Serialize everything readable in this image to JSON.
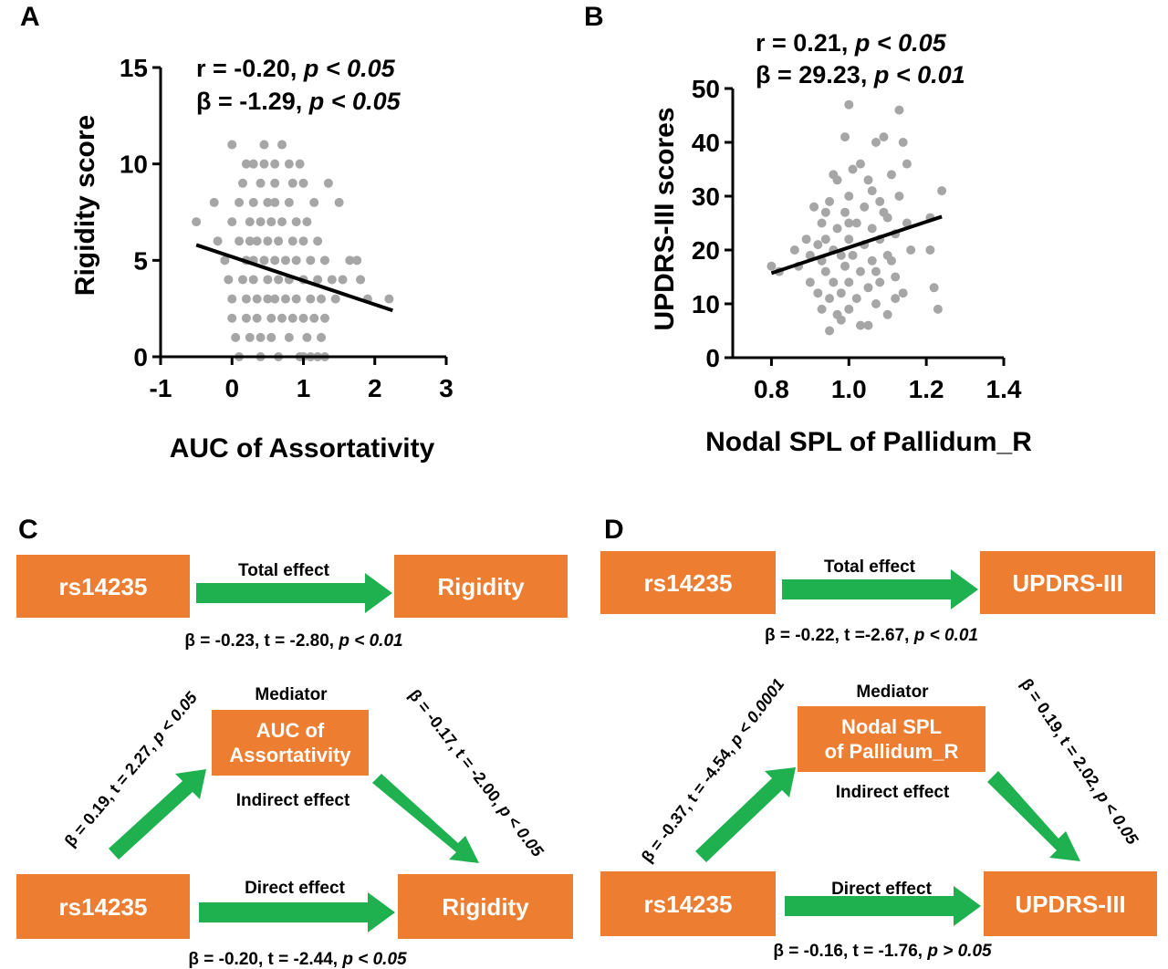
{
  "panel_letters": [
    "A",
    "B",
    "C",
    "D"
  ],
  "chart_data": [
    {
      "type": "scatter",
      "panel": "A",
      "xlabel": "AUC of Assortativity",
      "ylabel": "Rigidity score",
      "xlim": [
        -1,
        3
      ],
      "ylim": [
        0,
        15
      ],
      "xticks": [
        -1,
        0,
        1,
        2,
        3
      ],
      "yticks": [
        0,
        5,
        10,
        15
      ],
      "stats": {
        "r_prefix": "r = -0.20, ",
        "r_p": "p < 0.05",
        "b_prefix": "β = -1.29, ",
        "b_p": "p < 0.05"
      },
      "fit_line": {
        "x": [
          -0.5,
          2.25
        ],
        "y": [
          5.8,
          2.4
        ]
      },
      "points": [
        [
          -0.5,
          7
        ],
        [
          -0.25,
          8
        ],
        [
          -0.2,
          6
        ],
        [
          -0.1,
          5
        ],
        [
          -0.05,
          4
        ],
        [
          0.0,
          11
        ],
        [
          0.0,
          7
        ],
        [
          0.0,
          3
        ],
        [
          0.0,
          2
        ],
        [
          0.05,
          1
        ],
        [
          0.1,
          0
        ],
        [
          0.1,
          8
        ],
        [
          0.1,
          6
        ],
        [
          0.15,
          4
        ],
        [
          0.2,
          2
        ],
        [
          0.2,
          5
        ],
        [
          0.2,
          3
        ],
        [
          0.2,
          10
        ],
        [
          0.25,
          7
        ],
        [
          0.25,
          6
        ],
        [
          0.25,
          1
        ],
        [
          0.3,
          10
        ],
        [
          0.3,
          8
        ],
        [
          0.3,
          5
        ],
        [
          0.3,
          4
        ],
        [
          0.35,
          3
        ],
        [
          0.35,
          2
        ],
        [
          0.35,
          6
        ],
        [
          0.4,
          9
        ],
        [
          0.4,
          7
        ],
        [
          0.4,
          1
        ],
        [
          0.4,
          0
        ],
        [
          0.45,
          11
        ],
        [
          0.45,
          10
        ],
        [
          0.45,
          5
        ],
        [
          0.5,
          8
        ],
        [
          0.5,
          6
        ],
        [
          0.5,
          4
        ],
        [
          0.5,
          3
        ],
        [
          0.55,
          2
        ],
        [
          0.55,
          7
        ],
        [
          0.55,
          1
        ],
        [
          0.6,
          9
        ],
        [
          0.6,
          5
        ],
        [
          0.6,
          3
        ],
        [
          0.6,
          8
        ],
        [
          0.65,
          6
        ],
        [
          0.65,
          4
        ],
        [
          0.65,
          0
        ],
        [
          0.7,
          11
        ],
        [
          0.7,
          7
        ],
        [
          0.7,
          2
        ],
        [
          0.75,
          5
        ],
        [
          0.75,
          3
        ],
        [
          0.8,
          8
        ],
        [
          0.8,
          10
        ],
        [
          0.8,
          1
        ],
        [
          0.8,
          4
        ],
        [
          0.85,
          6
        ],
        [
          0.85,
          2
        ],
        [
          0.9,
          7
        ],
        [
          0.9,
          5
        ],
        [
          0.9,
          3
        ],
        [
          0.95,
          10
        ],
        [
          0.95,
          0
        ],
        [
          1.0,
          6
        ],
        [
          1.0,
          4
        ],
        [
          1.0,
          2
        ],
        [
          1.0,
          9
        ],
        [
          1.05,
          7
        ],
        [
          1.05,
          1
        ],
        [
          1.1,
          5
        ],
        [
          1.1,
          3
        ],
        [
          1.1,
          0
        ],
        [
          1.15,
          8
        ],
        [
          1.15,
          2
        ],
        [
          1.2,
          4
        ],
        [
          1.2,
          6
        ],
        [
          1.25,
          3
        ],
        [
          1.25,
          1
        ],
        [
          1.3,
          5
        ],
        [
          1.3,
          2
        ],
        [
          1.3,
          0
        ],
        [
          1.35,
          9
        ],
        [
          1.4,
          4
        ],
        [
          1.45,
          3
        ],
        [
          1.5,
          8
        ],
        [
          1.55,
          4
        ],
        [
          1.65,
          5
        ],
        [
          1.75,
          5
        ],
        [
          1.8,
          4
        ],
        [
          1.9,
          3
        ],
        [
          2.2,
          3
        ],
        [
          0.15,
          9
        ],
        [
          0.6,
          10
        ],
        [
          0.85,
          9
        ],
        [
          1.0,
          0
        ],
        [
          1.2,
          0
        ]
      ]
    },
    {
      "type": "scatter",
      "panel": "B",
      "xlabel": "Nodal SPL of Pallidum_R",
      "ylabel": "UPDRS-III scores",
      "xlim": [
        0.7,
        1.4
      ],
      "ylim": [
        0,
        50
      ],
      "xticks": [
        "0.8",
        "1.0",
        "1.2",
        "1.4"
      ],
      "yticks": [
        0,
        10,
        20,
        30,
        40,
        50
      ],
      "stats": {
        "r_prefix": "r = 0.21, ",
        "r_p": "p < 0.05",
        "b_prefix": "β = 29.23, ",
        "b_p": "p < 0.01"
      },
      "fit_line": {
        "x": [
          0.8,
          1.24
        ],
        "y": [
          15.7,
          26.2
        ]
      },
      "points": [
        [
          0.8,
          17
        ],
        [
          0.82,
          16
        ],
        [
          0.86,
          20
        ],
        [
          0.87,
          17
        ],
        [
          0.89,
          22
        ],
        [
          0.9,
          19
        ],
        [
          0.9,
          14
        ],
        [
          0.91,
          28
        ],
        [
          0.92,
          21
        ],
        [
          0.92,
          12
        ],
        [
          0.93,
          25
        ],
        [
          0.93,
          18
        ],
        [
          0.93,
          9
        ],
        [
          0.94,
          22
        ],
        [
          0.94,
          16
        ],
        [
          0.95,
          11
        ],
        [
          0.95,
          5
        ],
        [
          0.95,
          29
        ],
        [
          0.96,
          20
        ],
        [
          0.96,
          14
        ],
        [
          0.97,
          33
        ],
        [
          0.97,
          24
        ],
        [
          0.97,
          8
        ],
        [
          0.98,
          19
        ],
        [
          0.98,
          12
        ],
        [
          0.99,
          27
        ],
        [
          0.99,
          17
        ],
        [
          1.0,
          47
        ],
        [
          1.0,
          22
        ],
        [
          1.0,
          30
        ],
        [
          1.0,
          14
        ],
        [
          1.0,
          9
        ],
        [
          1.01,
          35
        ],
        [
          1.01,
          19
        ],
        [
          1.02,
          25
        ],
        [
          1.02,
          11
        ],
        [
          1.03,
          16
        ],
        [
          1.03,
          36
        ],
        [
          1.04,
          21
        ],
        [
          1.04,
          28
        ],
        [
          1.05,
          13
        ],
        [
          1.05,
          6
        ],
        [
          1.05,
          33
        ],
        [
          1.06,
          24
        ],
        [
          1.06,
          18
        ],
        [
          1.07,
          40
        ],
        [
          1.07,
          10
        ],
        [
          1.08,
          29
        ],
        [
          1.08,
          22
        ],
        [
          1.08,
          14
        ],
        [
          1.09,
          41
        ],
        [
          1.1,
          26
        ],
        [
          1.1,
          19
        ],
        [
          1.1,
          8
        ],
        [
          1.11,
          34
        ],
        [
          1.12,
          23
        ],
        [
          1.12,
          15
        ],
        [
          1.13,
          46
        ],
        [
          1.13,
          30
        ],
        [
          1.14,
          40
        ],
        [
          1.14,
          12
        ],
        [
          1.15,
          25
        ],
        [
          1.16,
          20
        ],
        [
          1.21,
          26
        ],
        [
          1.21,
          20
        ],
        [
          1.22,
          13
        ],
        [
          1.23,
          9
        ],
        [
          1.24,
          31
        ],
        [
          1.15,
          36
        ],
        [
          1.03,
          6
        ],
        [
          0.94,
          27
        ],
        [
          0.99,
          41
        ],
        [
          1.06,
          31
        ],
        [
          1.11,
          18
        ],
        [
          0.98,
          7
        ],
        [
          1.0,
          25
        ],
        [
          1.07,
          16
        ],
        [
          0.96,
          34
        ],
        [
          1.09,
          27
        ],
        [
          1.12,
          11
        ]
      ]
    }
  ],
  "diagram_c": {
    "panel": "C",
    "top": {
      "x_box": "rs14235",
      "y_box": "Rigidity",
      "effect_label": "Total effect",
      "stat_prefix": "β = -0.23, t = -2.80, ",
      "stat_p": "p < 0.01"
    },
    "mediator_title": "Mediator",
    "mediator_box": [
      "AUC of",
      "Assortativity"
    ],
    "indirect_label": "Indirect effect",
    "a_path": {
      "prefix": "β = 0.19, t = 2.27, ",
      "p": "p < 0.05"
    },
    "b_path": {
      "prefix": "β = -0.17, t = -2.00, ",
      "p": "p < 0.05"
    },
    "bottom": {
      "x_box": "rs14235",
      "y_box": "Rigidity",
      "effect_label": "Direct effect",
      "stat_prefix": "β = -0.20, t = -2.44, ",
      "stat_p": "p < 0.05"
    }
  },
  "diagram_d": {
    "panel": "D",
    "top": {
      "x_box": "rs14235",
      "y_box": "UPDRS-III",
      "effect_label": "Total effect",
      "stat_prefix": "β = -0.22, t =-2.67, ",
      "stat_p": "p < 0.01"
    },
    "mediator_title": "Mediator",
    "mediator_box": [
      "Nodal SPL",
      "of Pallidum_R"
    ],
    "indirect_label": "Indirect effect",
    "a_path": {
      "prefix": "β = -0.37, t = -4.54, ",
      "p": "p < 0.0001"
    },
    "b_path": {
      "prefix": "β = 0.19, t = 2.02, ",
      "p": "p < 0.05"
    },
    "bottom": {
      "x_box": "rs14235",
      "y_box": "UPDRS-III",
      "effect_label": "Direct effect",
      "stat_prefix": "β = -0.16, t = -1.76, ",
      "stat_p": "p > 0.05"
    }
  },
  "colors": {
    "box": "#ed7d31",
    "arrow": "#1fb050",
    "point": "#a6a6a6",
    "text": "#000000",
    "box_text": "#ffffff"
  }
}
